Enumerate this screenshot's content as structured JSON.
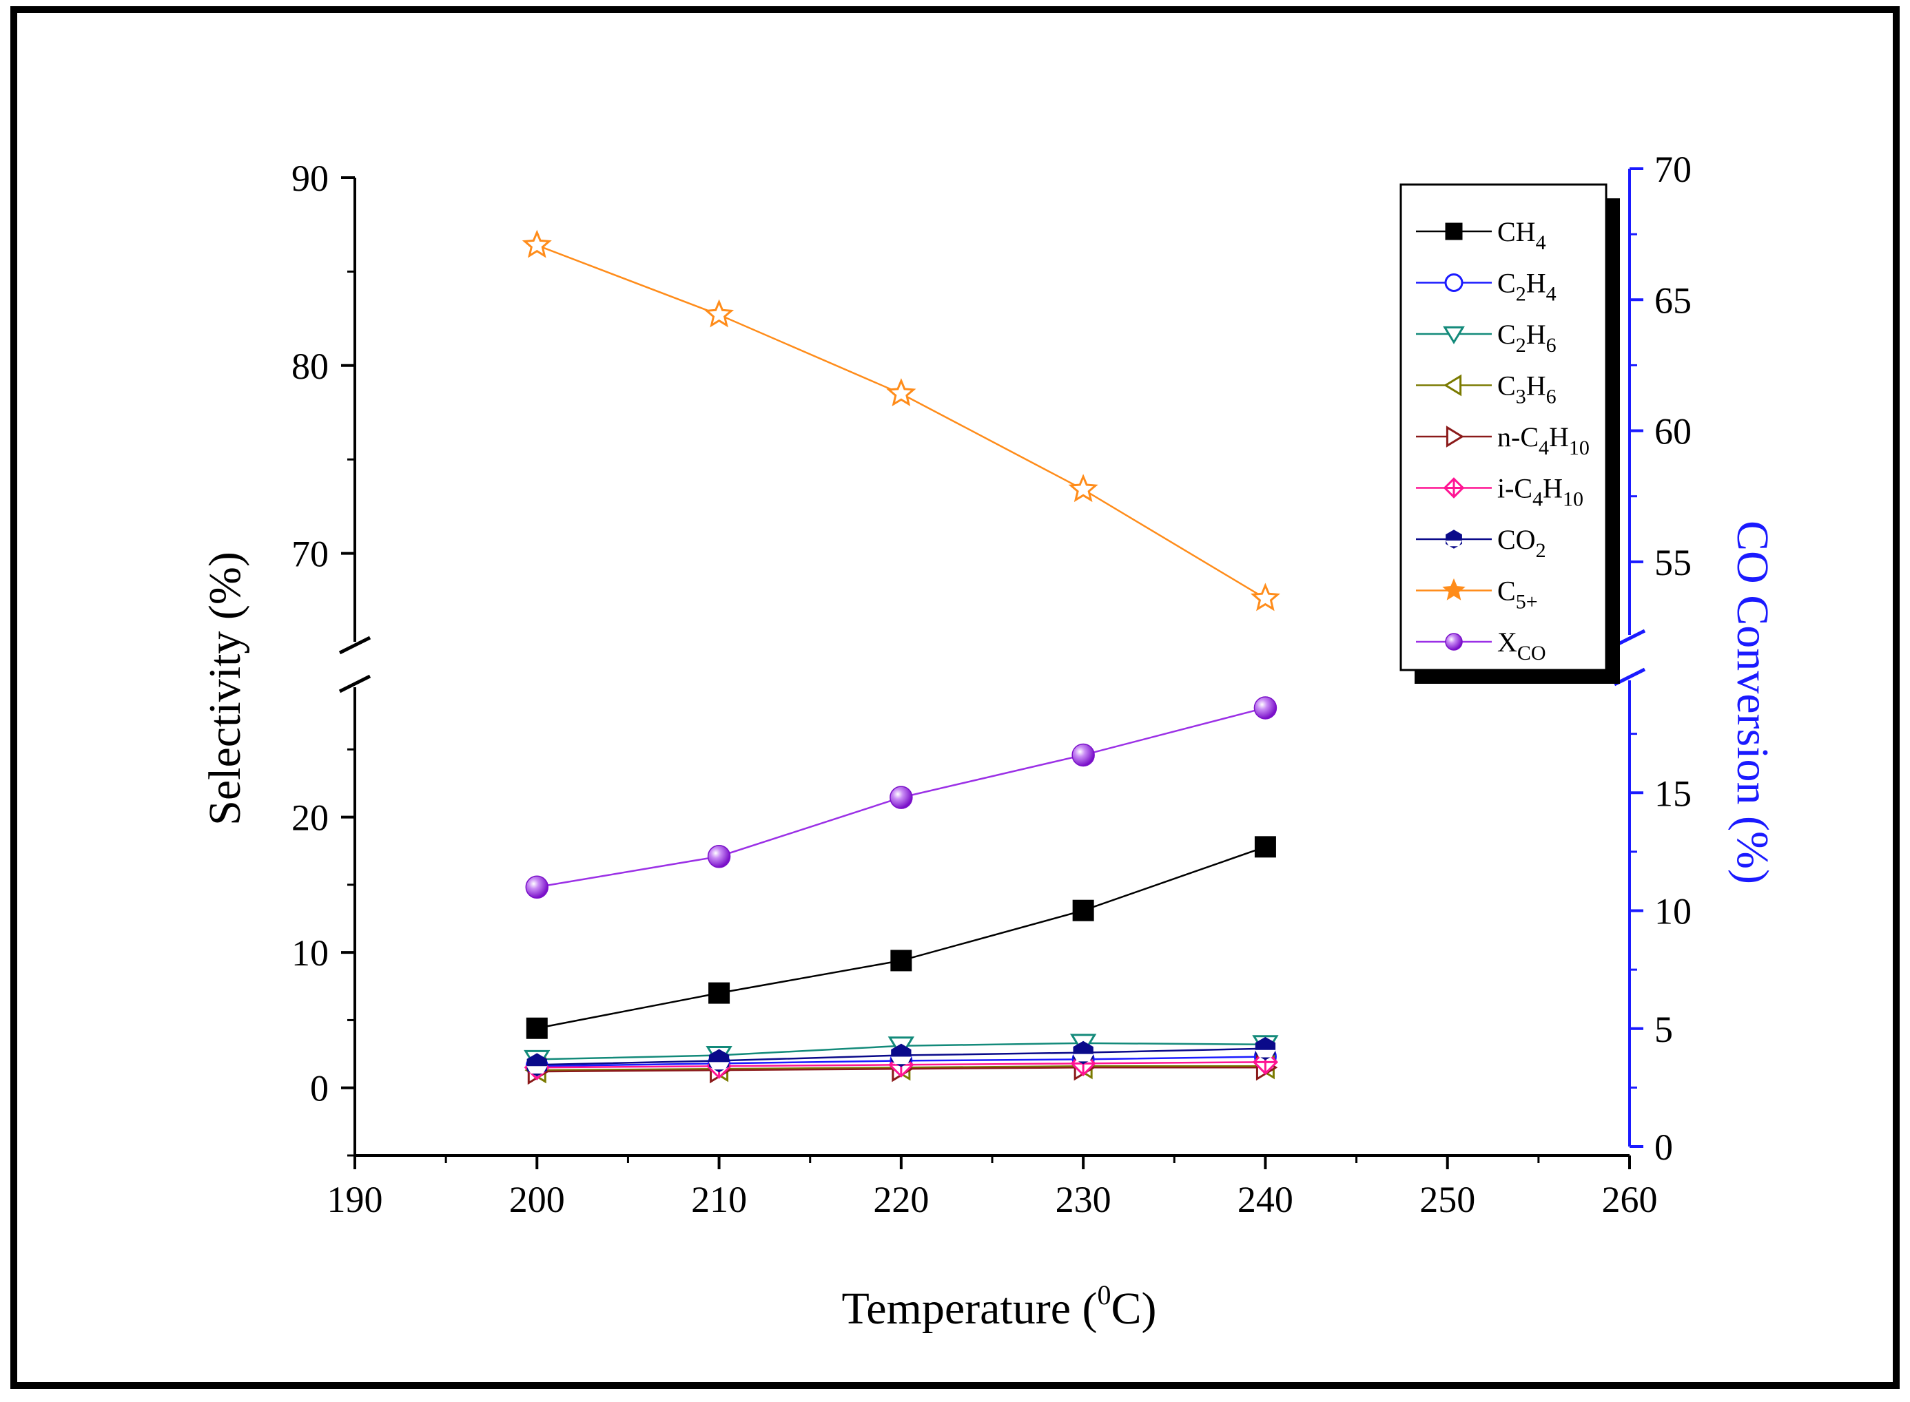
{
  "chart_data": {
    "type": "line",
    "title": "",
    "xlabel": "Temperature",
    "xlabel_unit": "(0C)",
    "xlabel_unit_parts": {
      "open": "(",
      "sup": "0",
      "close": "C)"
    },
    "ylabel": "Selectivity (%)",
    "y2label": "CO Conversion (%)",
    "xlim": [
      190,
      260
    ],
    "xticks": [
      190,
      200,
      210,
      220,
      230,
      240,
      250,
      260
    ],
    "ylim_lower": [
      -5,
      30
    ],
    "ylim_upper": [
      65,
      90
    ],
    "yticks_lower": [
      0,
      10,
      20
    ],
    "yticks_upper": [
      70,
      80,
      90
    ],
    "y2lim_lower": [
      0,
      20
    ],
    "y2lim_upper": [
      52,
      70
    ],
    "y2ticks_lower": [
      0,
      5,
      10,
      15
    ],
    "y2ticks_upper": [
      55,
      60,
      65,
      70
    ],
    "axis_break": true,
    "x": [
      200,
      210,
      220,
      230,
      240
    ],
    "series": [
      {
        "name": "CH4",
        "label_main": "CH",
        "label_sub": "4",
        "label_tail": "",
        "axis": "left",
        "color": "#000000",
        "marker": "square-filled",
        "values": [
          4.4,
          7.0,
          9.4,
          13.1,
          17.8
        ]
      },
      {
        "name": "C2H4",
        "label_main": "C",
        "label_sub": "2",
        "label_tail": "H",
        "label_sub2": "4",
        "axis": "left",
        "color": "#1a1aff",
        "marker": "circle-open",
        "values": [
          1.6,
          1.8,
          2.0,
          2.1,
          2.3
        ]
      },
      {
        "name": "C2H6",
        "label_main": "C",
        "label_sub": "2",
        "label_tail": "H",
        "label_sub2": "6",
        "axis": "left",
        "color": "#138a7a",
        "marker": "triangle-down-open",
        "values": [
          2.1,
          2.4,
          3.1,
          3.3,
          3.2
        ]
      },
      {
        "name": "C3H6",
        "label_main": "C",
        "label_sub": "3",
        "label_tail": "H",
        "label_sub2": "6",
        "axis": "left",
        "color": "#7a7a00",
        "marker": "triangle-left-open",
        "values": [
          1.3,
          1.4,
          1.5,
          1.6,
          1.6
        ]
      },
      {
        "name": "n-C4H10",
        "label_main": "n-C",
        "label_sub": "4",
        "label_tail": "H",
        "label_sub2": "10",
        "axis": "left",
        "color": "#8b1a1a",
        "marker": "triangle-right-open",
        "values": [
          1.2,
          1.3,
          1.4,
          1.5,
          1.5
        ]
      },
      {
        "name": "i-C4H10",
        "label_main": "i-C",
        "label_sub": "4",
        "label_tail": "H",
        "label_sub2": "10",
        "axis": "left",
        "color": "#ff1493",
        "marker": "diamond-cross",
        "values": [
          1.5,
          1.6,
          1.7,
          1.8,
          1.9
        ]
      },
      {
        "name": "CO2",
        "label_main": "CO",
        "label_sub": "2",
        "label_tail": "",
        "axis": "left",
        "color": "#0a0a8a",
        "marker": "hexagon-filled",
        "values": [
          1.7,
          2.0,
          2.4,
          2.6,
          2.9
        ]
      },
      {
        "name": "C5+",
        "label_main": "C",
        "label_sub": "5+",
        "label_tail": "",
        "axis": "left",
        "color": "#ff8c1a",
        "marker": "star-open",
        "values": [
          86.4,
          82.7,
          78.5,
          73.4,
          67.6
        ]
      },
      {
        "name": "XCO",
        "label_main": "X",
        "label_sub": "CO",
        "label_tail": "",
        "axis": "right",
        "color": "#9b30e6",
        "marker": "sphere",
        "values": [
          11.0,
          12.3,
          14.8,
          16.6,
          18.6
        ]
      }
    ],
    "legend_position": "top-right"
  }
}
